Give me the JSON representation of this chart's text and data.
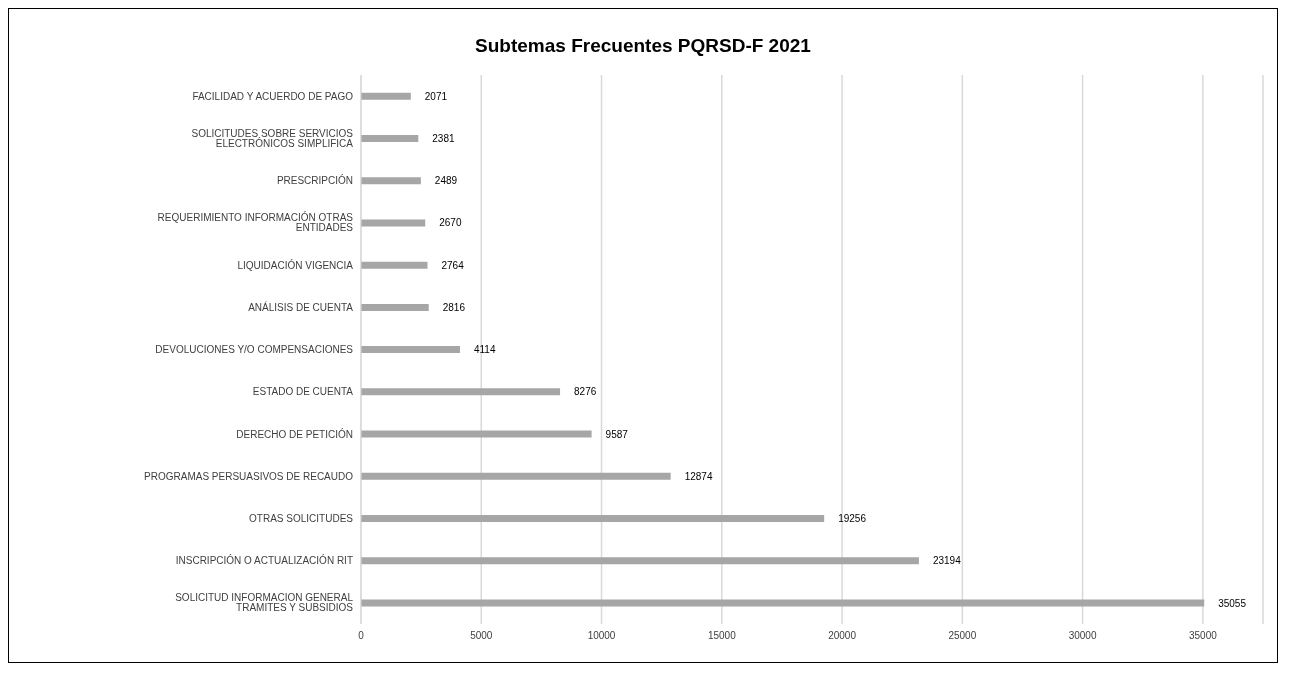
{
  "chart_data": {
    "type": "bar",
    "orientation": "horizontal",
    "title": "Subtemas Frecuentes PQRSD-F 2021",
    "categories": [
      "FACILIDAD Y ACUERDO  DE PAGO",
      "SOLICITUDES SOBRE SERVICIOS ELECTRÓNICOS SIMPLIFICA",
      "PRESCRIPCIÓN",
      "REQUERIMIENTO INFORMACIÓN OTRAS ENTIDADES",
      "LIQUIDACIÓN VIGENCIA",
      "ANÁLISIS DE CUENTA",
      "DEVOLUCIONES Y/O COMPENSACIONES",
      "ESTADO DE CUENTA",
      "DERECHO DE PETICIÓN",
      "PROGRAMAS PERSUASIVOS DE RECAUDO",
      "OTRAS SOLICITUDES",
      "INSCRIPCIÓN O ACTUALIZACIÓN RIT",
      "SOLICITUD INFORMACION GENERAL TRAMITES Y SUBSIDIOS"
    ],
    "values": [
      2071,
      2381,
      2489,
      2670,
      2764,
      2816,
      4114,
      8276,
      9587,
      12874,
      19256,
      23194,
      35055
    ],
    "color": "#a6a6a6",
    "data_labels": true,
    "grid": "x",
    "xlim": [
      0,
      37500
    ],
    "xticks": [
      0,
      5000,
      10000,
      15000,
      20000,
      25000,
      30000,
      35000
    ]
  }
}
